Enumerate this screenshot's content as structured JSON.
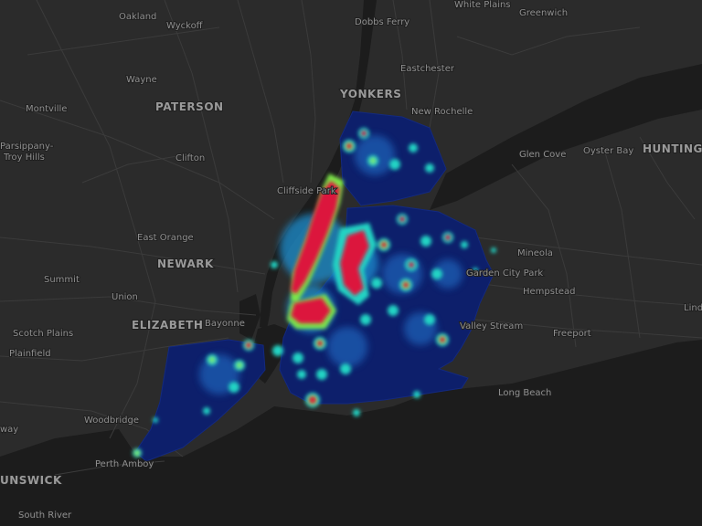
{
  "map": {
    "basemap": "dark",
    "colors": {
      "land": "#2b2b2b",
      "water": "#1d1d1d",
      "road": "#3a3a3a",
      "heat_low": "#0d1f6b",
      "heat_mid": "#1e8fd0",
      "heat_cyan": "#21d4c4",
      "heat_green": "#7de84a",
      "heat_yellow": "#e8e34a",
      "heat_high": "#dc143c"
    },
    "labels": [
      {
        "text": "Oakland"
      },
      {
        "text": "Wyckoff"
      },
      {
        "text": "Dobbs Ferry"
      },
      {
        "text": "White Plains"
      },
      {
        "text": "Greenwich"
      },
      {
        "text": "Wayne"
      },
      {
        "text": "Eastchester"
      },
      {
        "text": "Montville"
      },
      {
        "text": "PATERSON"
      },
      {
        "text": "YONKERS"
      },
      {
        "text": "New Rochelle"
      },
      {
        "text": "Parsippany-"
      },
      {
        "text": "Troy Hills"
      },
      {
        "text": "Clifton"
      },
      {
        "text": "Glen Cove"
      },
      {
        "text": "Oyster Bay"
      },
      {
        "text": "HUNTINGTO"
      },
      {
        "text": "Cliffside Park"
      },
      {
        "text": "East Orange"
      },
      {
        "text": "NEWARK"
      },
      {
        "text": "Mineola"
      },
      {
        "text": "Summit"
      },
      {
        "text": "Union"
      },
      {
        "text": "Garden City Park"
      },
      {
        "text": "Hempstead"
      },
      {
        "text": "Scotch Plains"
      },
      {
        "text": "ELIZABETH"
      },
      {
        "text": "Bayonne"
      },
      {
        "text": "Valley Stream"
      },
      {
        "text": "Freeport"
      },
      {
        "text": "Plainfield"
      },
      {
        "text": "Lind"
      },
      {
        "text": "Long Beach"
      },
      {
        "text": "Woodbridge"
      },
      {
        "text": "way"
      },
      {
        "text": "Perth Amboy"
      },
      {
        "text": "UNSWICK"
      },
      {
        "text": "South River"
      }
    ]
  }
}
